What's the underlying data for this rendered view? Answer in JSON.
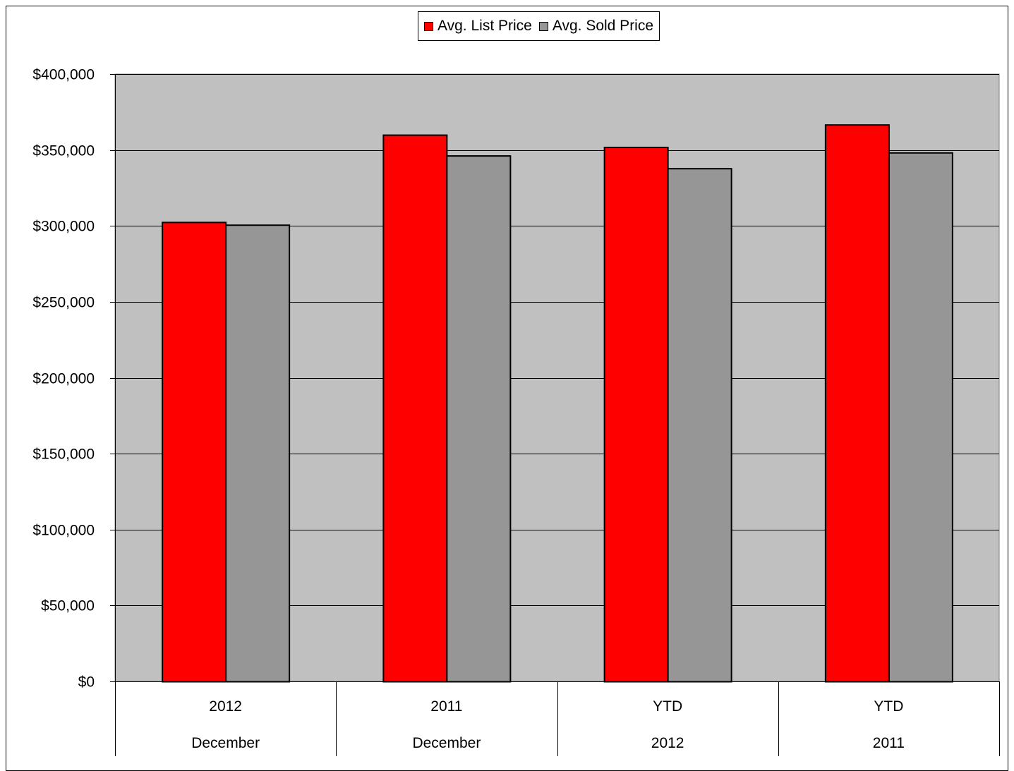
{
  "chart_data": {
    "type": "bar",
    "title": "",
    "xlabel": "",
    "ylabel": "",
    "ylim": [
      0,
      400000
    ],
    "yticks": [
      0,
      50000,
      100000,
      150000,
      200000,
      250000,
      300000,
      350000,
      400000
    ],
    "ytick_labels": [
      "$0",
      "$50,000",
      "$100,000",
      "$150,000",
      "$200,000",
      "$250,000",
      "$300,000",
      "$350,000",
      "$400,000"
    ],
    "categories": [
      {
        "top": "2012",
        "bottom": "December"
      },
      {
        "top": "2011",
        "bottom": "December"
      },
      {
        "top": "YTD",
        "bottom": "2012"
      },
      {
        "top": "YTD",
        "bottom": "2011"
      }
    ],
    "series": [
      {
        "name": "Avg. List Price",
        "color": "#ff0000",
        "values": [
          302500,
          360000,
          351900,
          366700
        ]
      },
      {
        "name": "Avg. Sold Price",
        "color": "#969696",
        "values": [
          300700,
          346300,
          337900,
          348300
        ]
      }
    ],
    "grid": true,
    "plot_background": "#c0c0c0",
    "legend_position": "top-center"
  }
}
